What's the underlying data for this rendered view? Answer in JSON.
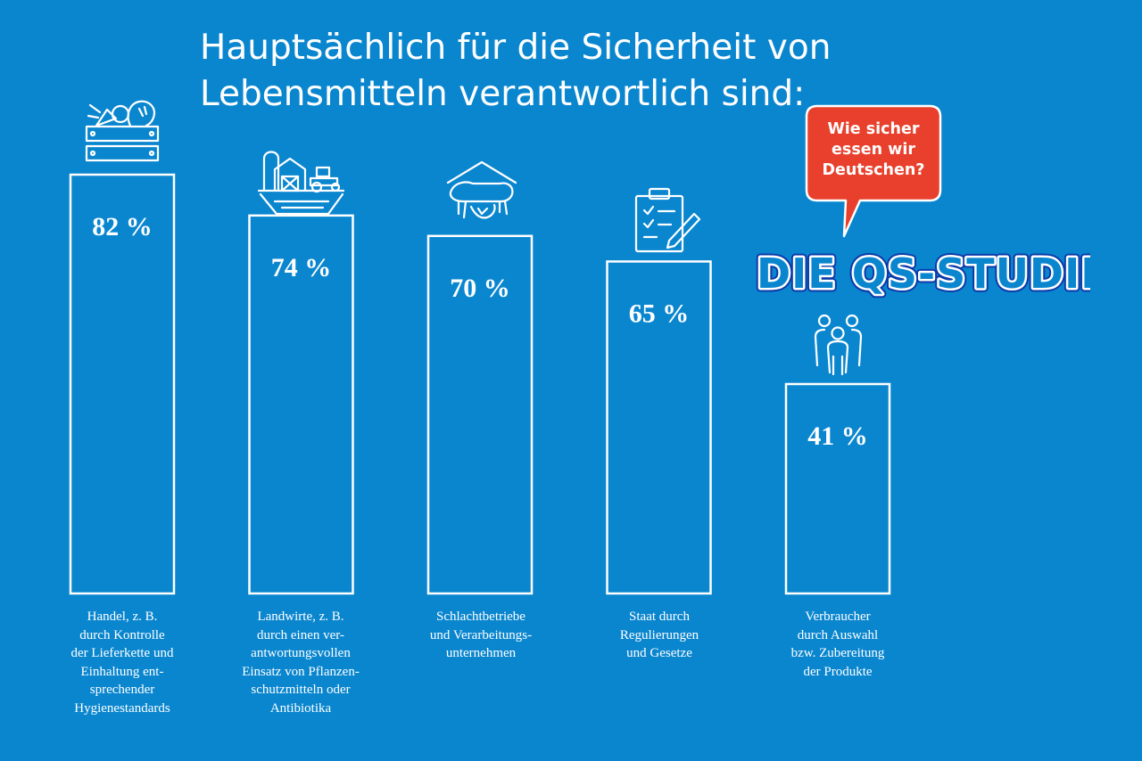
{
  "chart_data": {
    "type": "bar",
    "title": "Hauptsächlich für die Sicherheit von Lebensmitteln verantwortlich sind:",
    "title_lines": [
      "Hauptsächlich für die Sicherheit von",
      "Lebensmitteln verantwortlich sind:"
    ],
    "categories": [
      "Handel, z. B.\ndurch Kontrolle\nder Lieferkette und\nEinhaltung ent-\nsprechender\nHygienestandards",
      "Landwirte, z. B.\ndurch einen ver-\nantwortungsvollen\nEinsatz von Pflanzen-\nschutzmitteln oder\nAntibiotika",
      "Schlachtbetriebe\nund Verarbeitungs-\nunternehmen",
      "Staat durch\nRegulierungen\nund Gesetze",
      "Verbraucher\ndurch Auswahl\nbzw. Zubereitung\nder Produkte"
    ],
    "values": [
      82,
      74,
      70,
      65,
      41
    ],
    "value_labels": [
      "82 %",
      "74 %",
      "70 %",
      "65 %",
      "41 %"
    ],
    "icons": [
      "vegetable-crate-icon",
      "farm-tractor-icon",
      "slaughterhouse-icon",
      "clipboard-checklist-icon",
      "consumers-family-icon"
    ],
    "ylim": [
      0,
      100
    ],
    "xlabel": "",
    "ylabel": "",
    "grid": false,
    "legend": "none"
  },
  "callout": {
    "text": "Wie sicher\nessen wir\nDeutschen?",
    "color": "#e8402c"
  },
  "brand": {
    "text": "DIE QS-STUDIE"
  },
  "colors": {
    "background": "#0a86cf",
    "bar_outline": "#ffffff",
    "brand_fill": "#0a86cf",
    "brand_outline": "#ffffff",
    "brand_shadow": "#0b3aa8"
  }
}
